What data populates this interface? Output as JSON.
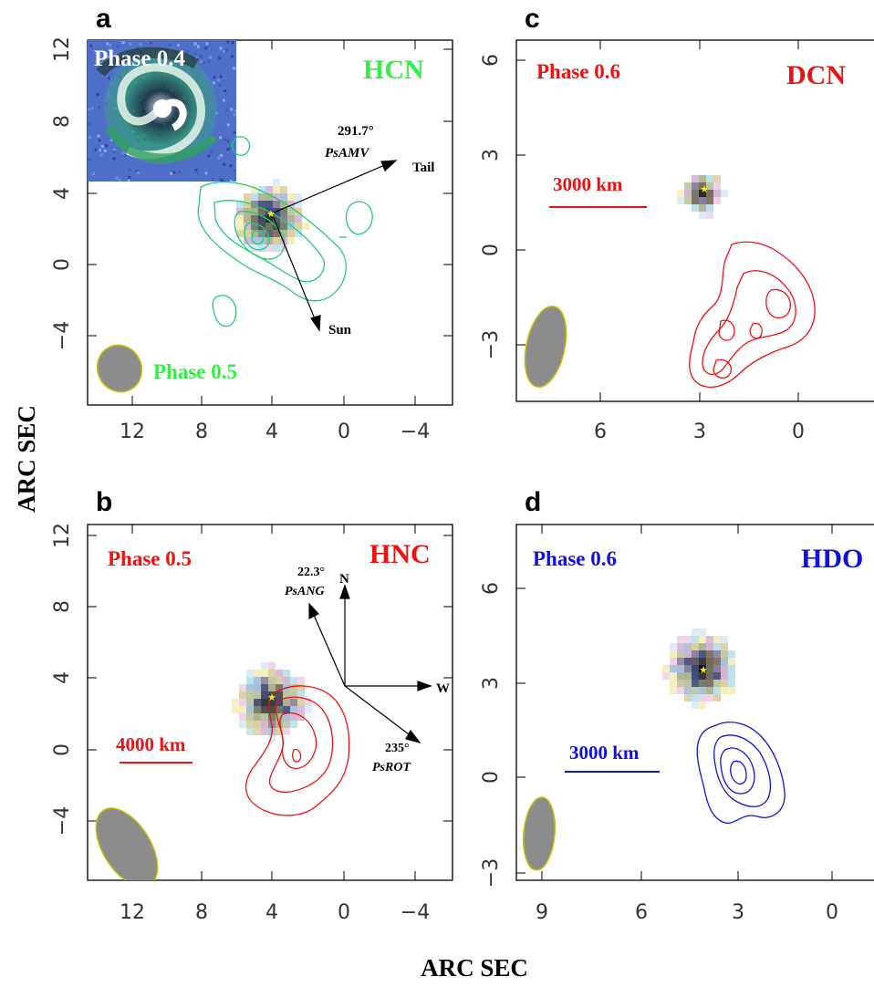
{
  "figure": {
    "ylabel": "ARC SEC",
    "xlabel": "ARC SEC"
  },
  "colors": {
    "hcn": "#33ee44",
    "hcn_contour": "#22cc77",
    "red": "#ee1111",
    "blue": "#1111dd",
    "beam_fill": "#8c8c8c",
    "beam_edge": "#c8c000"
  },
  "chart_data": [
    {
      "panel": "a",
      "type": "contour",
      "molecule": "HCN",
      "phase_label": "Phase 0.5",
      "inset_label": "Phase 0.4",
      "xticks": [
        "12",
        "8",
        "4",
        "0",
        "−4"
      ],
      "yticks": [
        "12",
        "8",
        "4",
        "0",
        "−4"
      ],
      "xlim": [
        14,
        -6
      ],
      "ylim": [
        -8,
        13
      ],
      "star": [
        4,
        3
      ],
      "annotations": {
        "angle": "291.7°",
        "name": "PsAMV",
        "tail": "Tail",
        "sun": "Sun"
      },
      "beam": {
        "center": [
          12.5,
          -5.7
        ],
        "width": 4.5,
        "height": 4.6
      }
    },
    {
      "panel": "b",
      "type": "contour",
      "molecule": "HNC",
      "phase_label": "Phase 0.5",
      "scale_bar": "4000 km",
      "xticks": [
        "12",
        "8",
        "4",
        "0",
        "−4"
      ],
      "yticks": [
        "12",
        "8",
        "4",
        "0",
        "−4"
      ],
      "xlim": [
        14,
        -6
      ],
      "ylim": [
        -8,
        13
      ],
      "star": [
        4,
        3
      ],
      "annotations": {
        "angle1": "22.3°",
        "name1": "PsANG",
        "north": "N",
        "west": "W",
        "angle2": "235°",
        "name2": "PsROT"
      },
      "beam": {
        "center": [
          11.7,
          -5.2
        ],
        "width": 5.5,
        "height": 7.5
      }
    },
    {
      "panel": "c",
      "type": "contour",
      "molecule": "DCN",
      "phase_label": "Phase 0.6",
      "scale_bar": "3000 km",
      "xticks": [
        "6",
        "3",
        "0"
      ],
      "yticks": [
        "6",
        "3",
        "0",
        "−3"
      ],
      "xlim": [
        8.1,
        -2.4
      ],
      "ylim": [
        -4.7,
        6.5
      ],
      "star": [
        2.9,
        1.9
      ],
      "beam": {
        "center": [
          7.6,
          -3.1
        ],
        "width": 1.2,
        "height": 2.5
      }
    },
    {
      "panel": "d",
      "type": "contour",
      "molecule": "HDO",
      "phase_label": "Phase 0.6",
      "scale_bar": "3000 km",
      "xticks": [
        "9",
        "6",
        "3",
        "0"
      ],
      "yticks": [
        "6",
        "3",
        "0",
        "−3"
      ],
      "xlim": [
        9.6,
        -1.7
      ],
      "ylim": [
        -3.5,
        8.0
      ],
      "star": [
        4.0,
        3.5
      ],
      "beam": {
        "center": [
          9.2,
          -2.0
        ],
        "width": 1.0,
        "height": 2.3
      }
    }
  ]
}
